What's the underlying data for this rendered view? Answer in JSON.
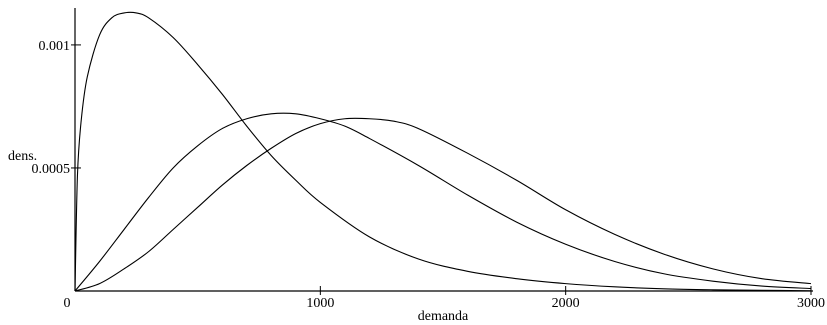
{
  "chart_data": {
    "type": "line",
    "xlabel": "demanda",
    "ylabel": "dens.",
    "xlim": [
      0,
      3000
    ],
    "ylim": [
      0,
      0.00115
    ],
    "xticks": [
      {
        "value": 0,
        "label": "0"
      },
      {
        "value": 1000,
        "label": "1000"
      },
      {
        "value": 2000,
        "label": "2000"
      },
      {
        "value": 3000,
        "label": "3000"
      }
    ],
    "yticks": [
      {
        "value": 0.0005,
        "label": "0.0005"
      },
      {
        "value": 0.001,
        "label": "0.001"
      }
    ],
    "grid": false,
    "series": [
      {
        "x": [
          0,
          10,
          25,
          50,
          100,
          150,
          200,
          250,
          300,
          400,
          500,
          600,
          700,
          800,
          900,
          1000,
          1200,
          1400,
          1600,
          1800,
          2000,
          2200,
          2400,
          2600,
          2800,
          3000
        ],
        "y": [
          0,
          0.00047,
          0.00069,
          0.00087,
          0.00104,
          0.00111,
          0.00113,
          0.00113,
          0.00111,
          0.00103,
          0.00092,
          0.0008,
          0.00067,
          0.00055,
          0.00045,
          0.00036,
          0.00022,
          0.00013,
          8e-05,
          5e-05,
          3e-05,
          1.7e-05,
          9e-06,
          5e-06,
          3e-06,
          1e-06
        ]
      },
      {
        "x": [
          0,
          100,
          200,
          300,
          400,
          500,
          600,
          700,
          800,
          900,
          1000,
          1100,
          1200,
          1400,
          1600,
          1800,
          2000,
          2200,
          2400,
          2600,
          2800,
          3000
        ],
        "y": [
          0,
          0.00012,
          0.00025,
          0.00038,
          0.0005,
          0.00059,
          0.00066,
          0.0007,
          0.00072,
          0.00072,
          0.0007,
          0.00067,
          0.00062,
          0.00051,
          0.00039,
          0.00028,
          0.00019,
          0.00012,
          7e-05,
          4e-05,
          2e-05,
          1e-05
        ]
      },
      {
        "x": [
          0,
          100,
          200,
          300,
          400,
          500,
          600,
          700,
          800,
          900,
          1000,
          1100,
          1200,
          1300,
          1400,
          1600,
          1800,
          2000,
          2200,
          2400,
          2600,
          2800,
          3000
        ],
        "y": [
          0,
          3e-05,
          9e-05,
          0.00016,
          0.00025,
          0.00034,
          0.00043,
          0.00051,
          0.00058,
          0.00064,
          0.00068,
          0.0007,
          0.0007,
          0.00069,
          0.00066,
          0.00056,
          0.00045,
          0.00033,
          0.00023,
          0.00015,
          9e-05,
          5e-05,
          3e-05
        ]
      }
    ]
  }
}
